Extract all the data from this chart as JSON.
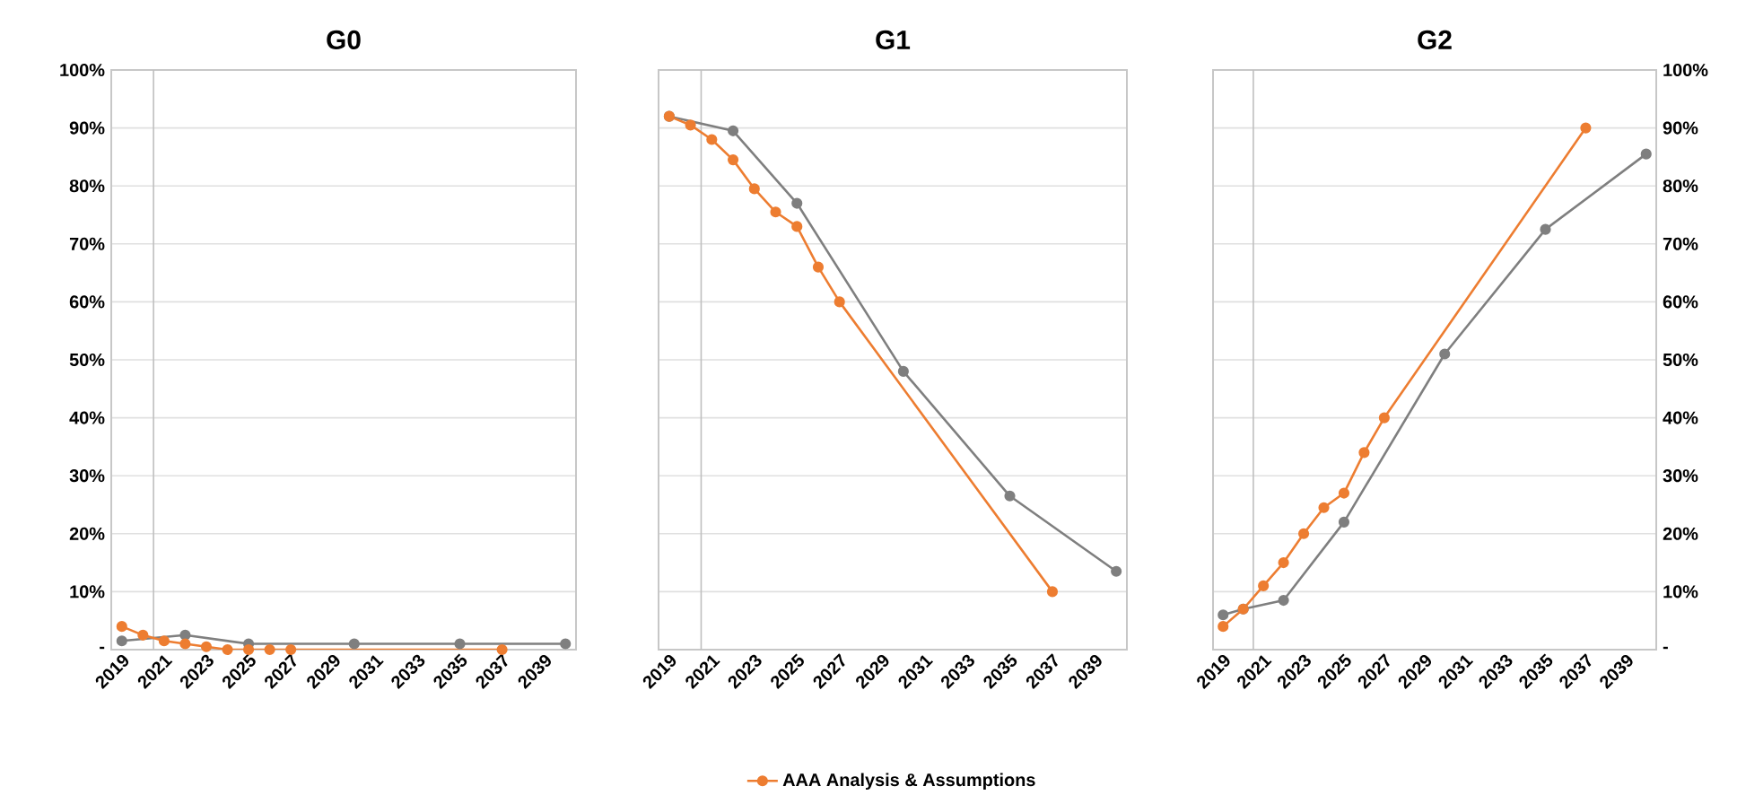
{
  "chart_data": [
    {
      "type": "line",
      "title": "G0",
      "xlim": [
        2018.5,
        2040.5
      ],
      "xticks": [
        2019,
        2021,
        2023,
        2025,
        2027,
        2029,
        2031,
        2033,
        2035,
        2037,
        2039
      ],
      "ylim": [
        0,
        100
      ],
      "yticks": [
        {
          "value": 0,
          "label": "-"
        },
        {
          "value": 10,
          "label": "10%"
        },
        {
          "value": 20,
          "label": "20%"
        },
        {
          "value": 30,
          "label": "30%"
        },
        {
          "value": 40,
          "label": "40%"
        },
        {
          "value": 50,
          "label": "50%"
        },
        {
          "value": 60,
          "label": "60%"
        },
        {
          "value": 70,
          "label": "70%"
        },
        {
          "value": 80,
          "label": "80%"
        },
        {
          "value": 90,
          "label": "90%"
        },
        {
          "value": 100,
          "label": "100%"
        }
      ],
      "grid": "y",
      "marker": "circle",
      "line_style": "solid",
      "ref_lines": [
        {
          "axis": "x",
          "value": 2020.5,
          "color": "#bfbfbf"
        }
      ],
      "series": [
        {
          "color": "#7f7f7f",
          "x": [
            2019,
            2022,
            2025,
            2030,
            2035,
            2040
          ],
          "values": [
            1.5,
            2.5,
            1,
            1,
            1,
            1
          ]
        },
        {
          "color": "#ed7d31",
          "x": [
            2019,
            2020,
            2021,
            2022,
            2023,
            2024,
            2025,
            2026,
            2027,
            2037
          ],
          "values": [
            4,
            2.5,
            1.5,
            1,
            0.5,
            0,
            0,
            0,
            0,
            0
          ]
        }
      ]
    },
    {
      "type": "line",
      "title": "G1",
      "xlim": [
        2018.5,
        2040.5
      ],
      "xticks": [
        2019,
        2021,
        2023,
        2025,
        2027,
        2029,
        2031,
        2033,
        2035,
        2037,
        2039
      ],
      "ylim": [
        0,
        100
      ],
      "yticks": [
        0,
        10,
        20,
        30,
        40,
        50,
        60,
        70,
        80,
        90,
        100
      ],
      "tick_labels": "x",
      "grid": "y",
      "marker": "circle",
      "line_style": "solid",
      "legend": "bottom",
      "ref_lines": [
        {
          "axis": "x",
          "value": 2020.5,
          "color": "#bfbfbf"
        }
      ],
      "series": [
        {
          "color": "#7f7f7f",
          "x": [
            2019,
            2022,
            2025,
            2030,
            2035,
            2040
          ],
          "values": [
            92,
            89.5,
            77,
            48,
            26.5,
            13.5
          ]
        },
        {
          "name": "AAA Analysis & Assumptions",
          "color": "#ed7d31",
          "x": [
            2019,
            2020,
            2021,
            2022,
            2023,
            2024,
            2025,
            2026,
            2027,
            2037
          ],
          "values": [
            92,
            90.5,
            88,
            84.5,
            79.5,
            75.5,
            73,
            66,
            60,
            10
          ]
        }
      ]
    },
    {
      "type": "line",
      "title": "G2",
      "xlim": [
        2018.5,
        2040.5
      ],
      "xticks": [
        2019,
        2021,
        2023,
        2025,
        2027,
        2029,
        2031,
        2033,
        2035,
        2037,
        2039
      ],
      "y2lim": [
        0,
        100
      ],
      "y2ticks": [
        {
          "value": 0,
          "label": "-"
        },
        {
          "value": 10,
          "label": "10%"
        },
        {
          "value": 20,
          "label": "20%"
        },
        {
          "value": 30,
          "label": "30%"
        },
        {
          "value": 40,
          "label": "40%"
        },
        {
          "value": 50,
          "label": "50%"
        },
        {
          "value": 60,
          "label": "60%"
        },
        {
          "value": 70,
          "label": "70%"
        },
        {
          "value": 80,
          "label": "80%"
        },
        {
          "value": 90,
          "label": "90%"
        },
        {
          "value": 100,
          "label": "100%"
        }
      ],
      "grid": "y",
      "marker": "circle",
      "line_style": "solid",
      "ref_lines": [
        {
          "axis": "x",
          "value": 2020.5,
          "color": "#bfbfbf"
        }
      ],
      "series": [
        {
          "color": "#7f7f7f",
          "axis": "y2",
          "x": [
            2019,
            2020,
            2022,
            2025,
            2030,
            2035,
            2040
          ],
          "values": [
            6,
            7,
            8.5,
            22,
            51,
            72.5,
            85.5
          ]
        },
        {
          "color": "#ed7d31",
          "axis": "y2",
          "x": [
            2019,
            2020,
            2021,
            2022,
            2023,
            2024,
            2025,
            2026,
            2027,
            2037
          ],
          "values": [
            4,
            7,
            11,
            15,
            20,
            24.5,
            27,
            34,
            40,
            90
          ]
        }
      ]
    }
  ]
}
